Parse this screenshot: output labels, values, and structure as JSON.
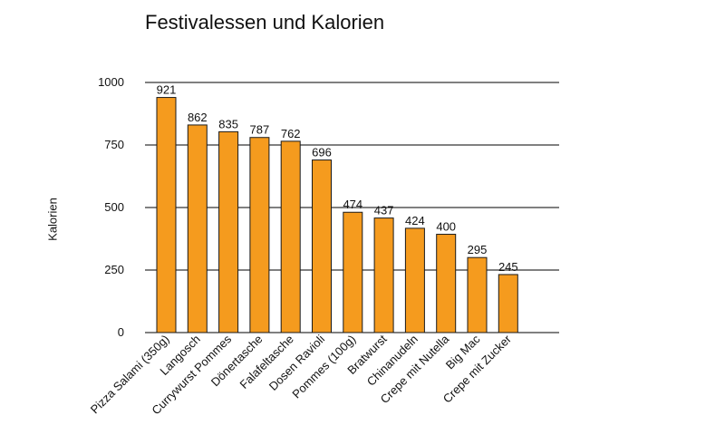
{
  "chart_data": {
    "type": "bar",
    "title": "Festivalessen und Kalorien",
    "ylabel": "Kalorien",
    "xlabel": "",
    "ylim": [
      0,
      1000
    ],
    "yticks": [
      0,
      250,
      500,
      750,
      1000
    ],
    "grid": true,
    "legend": "none",
    "bar_color": "#F59B1E",
    "bar_stroke": "#1a1a1a",
    "categories": [
      "Pizza Salami (350g)",
      "Langosch",
      "Currywurst Pommes",
      "Dönertasche",
      "Falafeltasche",
      "Dosen Ravioli",
      "Pommes (100g)",
      "Bratwurst",
      "Chinanudeln",
      "Crepe mit Nutella",
      "Big Mac",
      "Crepe mit Zucker"
    ],
    "values": [
      921,
      862,
      835,
      787,
      762,
      696,
      474,
      437,
      424,
      400,
      295,
      245
    ],
    "data_labels": [
      "921",
      "862",
      "835",
      "787",
      "762",
      "696",
      "474",
      "437",
      "424",
      "400",
      "295",
      "245"
    ],
    "bar_heights_visual": [
      940,
      830,
      803,
      780,
      765,
      690,
      481,
      458,
      417,
      393,
      300,
      232
    ]
  }
}
